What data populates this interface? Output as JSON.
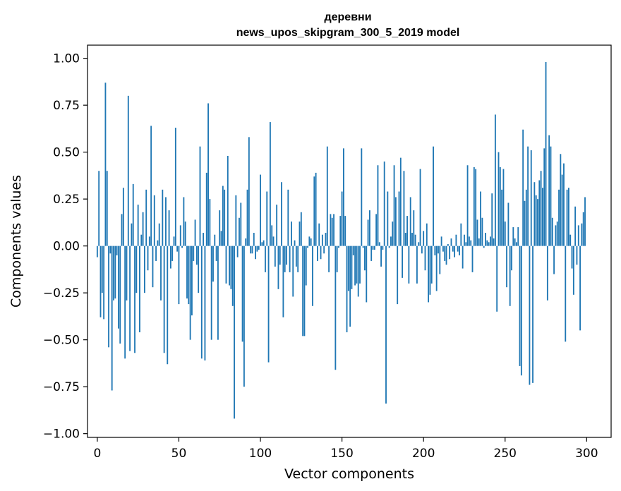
{
  "chart_data": {
    "type": "bar",
    "title": "деревни",
    "subtitle": "news_upos_skipgram_300_5_2019 model",
    "xlabel": "Vector components",
    "ylabel": "Components values",
    "xlim": [
      -6,
      315
    ],
    "ylim": [
      -1.02,
      1.07
    ],
    "xticks": [
      0,
      50,
      100,
      150,
      200,
      250,
      300
    ],
    "yticks": [
      -1.0,
      -0.75,
      -0.5,
      -0.25,
      0.0,
      0.25,
      0.5,
      0.75,
      1.0
    ],
    "xtick_labels": [
      "0",
      "50",
      "100",
      "150",
      "200",
      "250",
      "300"
    ],
    "ytick_labels": [
      "−1.00",
      "−0.75",
      "−0.50",
      "−0.25",
      "0.00",
      "0.25",
      "0.50",
      "0.75",
      "1.00"
    ],
    "bar_color": "#1f77b4",
    "grid": false,
    "x": [
      0,
      1,
      2,
      3,
      4,
      5,
      6,
      7,
      8,
      9,
      10,
      11,
      12,
      13,
      14,
      15,
      16,
      17,
      18,
      19,
      20,
      21,
      22,
      23,
      24,
      25,
      26,
      27,
      28,
      29,
      30,
      31,
      32,
      33,
      34,
      35,
      36,
      37,
      38,
      39,
      40,
      41,
      42,
      43,
      44,
      45,
      46,
      47,
      48,
      49,
      50,
      51,
      52,
      53,
      54,
      55,
      56,
      57,
      58,
      59,
      60,
      61,
      62,
      63,
      64,
      65,
      66,
      67,
      68,
      69,
      70,
      71,
      72,
      73,
      74,
      75,
      76,
      77,
      78,
      79,
      80,
      81,
      82,
      83,
      84,
      85,
      86,
      87,
      88,
      89,
      90,
      91,
      92,
      93,
      94,
      95,
      96,
      97,
      98,
      99,
      100,
      101,
      102,
      103,
      104,
      105,
      106,
      107,
      108,
      109,
      110,
      111,
      112,
      113,
      114,
      115,
      116,
      117,
      118,
      119,
      120,
      121,
      122,
      123,
      124,
      125,
      126,
      127,
      128,
      129,
      130,
      131,
      132,
      133,
      134,
      135,
      136,
      137,
      138,
      139,
      140,
      141,
      142,
      143,
      144,
      145,
      146,
      147,
      148,
      149,
      150,
      151,
      152,
      153,
      154,
      155,
      156,
      157,
      158,
      159,
      160,
      161,
      162,
      163,
      164,
      165,
      166,
      167,
      168,
      169,
      170,
      171,
      172,
      173,
      174,
      175,
      176,
      177,
      178,
      179,
      180,
      181,
      182,
      183,
      184,
      185,
      186,
      187,
      188,
      189,
      190,
      191,
      192,
      193,
      194,
      195,
      196,
      197,
      198,
      199,
      200,
      201,
      202,
      203,
      204,
      205,
      206,
      207,
      208,
      209,
      210,
      211,
      212,
      213,
      214,
      215,
      216,
      217,
      218,
      219,
      220,
      221,
      222,
      223,
      224,
      225,
      226,
      227,
      228,
      229,
      230,
      231,
      232,
      233,
      234,
      235,
      236,
      237,
      238,
      239,
      240,
      241,
      242,
      243,
      244,
      245,
      246,
      247,
      248,
      249,
      250,
      251,
      252,
      253,
      254,
      255,
      256,
      257,
      258,
      259,
      260,
      261,
      262,
      263,
      264,
      265,
      266,
      267,
      268,
      269,
      270,
      271,
      272,
      273,
      274,
      275,
      276,
      277,
      278,
      279,
      280,
      281,
      282,
      283,
      284,
      285,
      286,
      287,
      288,
      289,
      290,
      291,
      292,
      293,
      294,
      295,
      296,
      297,
      298,
      299
    ],
    "values": [
      -0.06,
      0.4,
      -0.38,
      -0.25,
      -0.39,
      0.87,
      0.4,
      -0.54,
      -0.04,
      -0.77,
      -0.29,
      -0.28,
      -0.05,
      -0.44,
      -0.52,
      0.17,
      0.31,
      -0.6,
      -0.29,
      0.8,
      -0.56,
      0.12,
      0.33,
      -0.57,
      -0.25,
      0.22,
      -0.46,
      0.06,
      0.18,
      -0.25,
      0.3,
      -0.13,
      0.05,
      0.64,
      -0.22,
      0.27,
      -0.08,
      0.03,
      0.12,
      -0.29,
      0.3,
      -0.57,
      0.26,
      -0.63,
      0.19,
      -0.12,
      -0.08,
      0.05,
      0.63,
      -0.03,
      -0.31,
      0.11,
      -0.01,
      0.26,
      0.13,
      -0.28,
      -0.31,
      -0.5,
      -0.37,
      -0.08,
      0.14,
      -0.1,
      -0.25,
      0.53,
      -0.6,
      0.07,
      -0.61,
      0.39,
      0.76,
      0.25,
      -0.5,
      -0.19,
      0.06,
      -0.08,
      -0.5,
      0.19,
      0.08,
      0.32,
      0.3,
      -0.2,
      0.48,
      -0.21,
      -0.23,
      -0.32,
      -0.92,
      0.27,
      -0.06,
      0.15,
      0.23,
      -0.51,
      -0.75,
      0.04,
      0.3,
      0.58,
      -0.04,
      -0.04,
      0.07,
      -0.07,
      -0.03,
      -0.02,
      0.38,
      0.02,
      0.03,
      -0.14,
      0.29,
      -0.62,
      0.66,
      0.11,
      0.05,
      -0.11,
      0.22,
      -0.23,
      -0.1,
      0.34,
      -0.38,
      -0.14,
      -0.1,
      0.3,
      -0.14,
      0.13,
      -0.27,
      0.03,
      -0.11,
      -0.14,
      0.13,
      0.18,
      -0.48,
      -0.48,
      -0.21,
      -0.01,
      0.05,
      0.04,
      -0.32,
      0.37,
      0.39,
      -0.08,
      0.12,
      -0.07,
      0.06,
      -0.04,
      0.07,
      0.53,
      -0.14,
      0.17,
      0.15,
      0.17,
      -0.66,
      -0.14,
      -0.01,
      0.16,
      0.29,
      0.52,
      0.16,
      -0.46,
      -0.24,
      -0.43,
      -0.23,
      -0.05,
      -0.21,
      -0.2,
      -0.27,
      -0.2,
      0.52,
      -0.01,
      -0.13,
      -0.3,
      0.14,
      0.19,
      -0.08,
      -0.02,
      -0.02,
      0.17,
      0.43,
      0.02,
      -0.11,
      -0.02,
      0.45,
      -0.84,
      0.29,
      -0.01,
      0.05,
      0.13,
      0.43,
      0.26,
      -0.31,
      0.29,
      0.47,
      -0.17,
      0.4,
      0.07,
      0.16,
      -0.2,
      0.26,
      0.07,
      0.19,
      0.06,
      -0.2,
      0.02,
      0.41,
      -0.04,
      0.08,
      -0.13,
      0.12,
      -0.3,
      -0.26,
      -0.2,
      0.53,
      -0.05,
      -0.24,
      -0.04,
      -0.15,
      0.05,
      -0.03,
      -0.08,
      -0.1,
      0.01,
      -0.07,
      0.04,
      -0.03,
      -0.06,
      0.06,
      -0.03,
      -0.05,
      0.12,
      -0.12,
      0.06,
      0.02,
      0.43,
      0.05,
      0.03,
      -0.14,
      0.42,
      0.41,
      0.14,
      0.04,
      0.29,
      0.15,
      -0.01,
      0.07,
      0.03,
      0.02,
      0.05,
      0.28,
      0.04,
      0.7,
      -0.35,
      0.5,
      0.42,
      0.3,
      0.41,
      0.13,
      -0.22,
      0.23,
      -0.32,
      -0.13,
      0.1,
      0.04,
      0.02,
      0.1,
      -0.64,
      -0.69,
      0.62,
      0.24,
      0.3,
      0.53,
      -0.74,
      0.51,
      -0.73,
      0.34,
      0.27,
      0.25,
      0.35,
      0.4,
      0.31,
      0.52,
      0.98,
      -0.29,
      0.59,
      0.53,
      0.15,
      -0.15,
      0.11,
      0.13,
      0.3,
      0.49,
      0.38,
      0.44,
      -0.51,
      0.3,
      0.31,
      0.06,
      -0.12,
      -0.26,
      0.21,
      -0.1,
      0.11,
      -0.45,
      0.12,
      0.18,
      0.26
    ]
  }
}
